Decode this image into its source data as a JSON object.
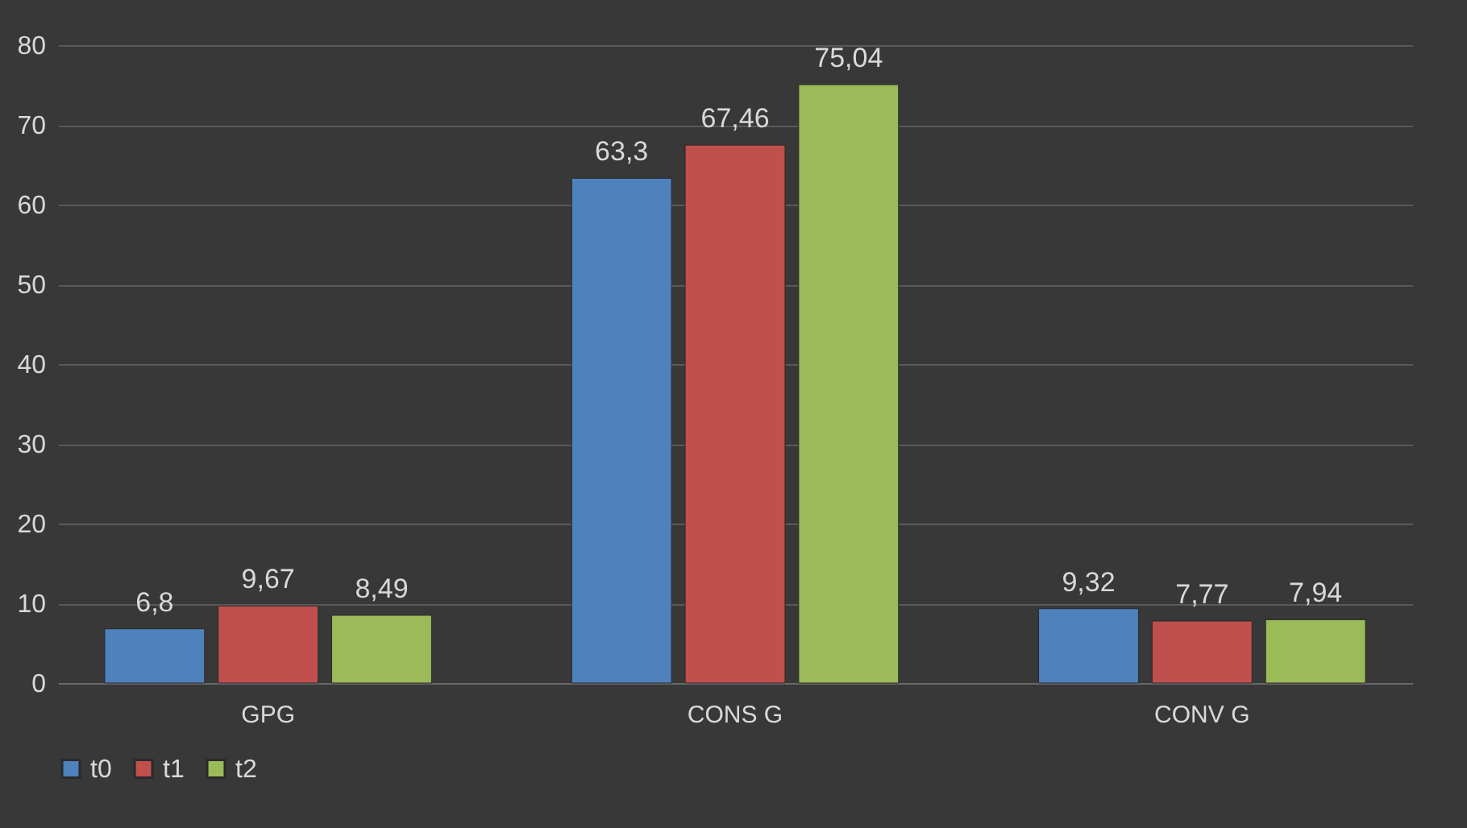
{
  "chart_data": {
    "type": "bar",
    "categories": [
      "GPG",
      "CONS G",
      "CONV G"
    ],
    "series": [
      {
        "name": "t0",
        "color": "#4f81bd",
        "values": [
          6.8,
          63.3,
          9.32
        ],
        "value_labels": [
          "6,8",
          "63,3",
          "9,32"
        ]
      },
      {
        "name": "t1",
        "color": "#c0504d",
        "values": [
          9.67,
          67.46,
          7.77
        ],
        "value_labels": [
          "9,67",
          "67,46",
          "7,77"
        ]
      },
      {
        "name": "t2",
        "color": "#9bbb59",
        "values": [
          8.49,
          75.04,
          7.94
        ],
        "value_labels": [
          "8,49",
          "75,04",
          "7,94"
        ]
      }
    ],
    "ylim": [
      0,
      80
    ],
    "yticks": [
      0,
      10,
      20,
      30,
      40,
      50,
      60,
      70,
      80
    ],
    "grid": "y",
    "legend": "bottom"
  }
}
